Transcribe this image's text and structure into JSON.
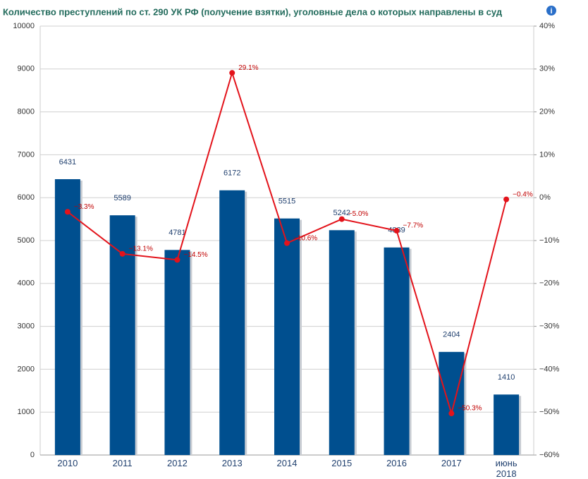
{
  "chart_data": {
    "type": "bar_line",
    "title": "Количество преступлений по ст. 290 УК РФ (получение взятки), уголовные дела о которых направлены в суд",
    "categories": [
      "2010",
      "2011",
      "2012",
      "2013",
      "2014",
      "2015",
      "2016",
      "2017",
      "июнь 2018"
    ],
    "series": [
      {
        "type": "bar",
        "color": "#004f8f",
        "values": [
          6431,
          5589,
          4781,
          6172,
          5515,
          5242,
          4839,
          2404,
          1410
        ]
      },
      {
        "type": "line",
        "axis": "y2",
        "color": "#e3131b",
        "values": [
          -3.3,
          -13.1,
          -14.5,
          29.1,
          -10.6,
          -5.0,
          -7.7,
          -50.3,
          -0.4
        ],
        "value_labels": [
          "−3.3%",
          "−13.1%",
          "−14.5%",
          "29.1%",
          "−10.6%",
          "−5.0%",
          "−7.7%",
          "−50.3%",
          "−0.4%"
        ]
      }
    ],
    "ylim": [
      0,
      10000
    ],
    "yticks": [
      0,
      1000,
      2000,
      3000,
      4000,
      5000,
      6000,
      7000,
      8000,
      9000,
      10000
    ],
    "y2lim": [
      -60,
      40
    ],
    "y2ticks": [
      {
        "value": -60,
        "label": "−60%"
      },
      {
        "value": -50,
        "label": "−50%"
      },
      {
        "value": -40,
        "label": "−40%"
      },
      {
        "value": -30,
        "label": "−30%"
      },
      {
        "value": -20,
        "label": "−20%"
      },
      {
        "value": -10,
        "label": "−10%"
      },
      {
        "value": 0,
        "label": "0%"
      },
      {
        "value": 10,
        "label": "10%"
      },
      {
        "value": 20,
        "label": "20%"
      },
      {
        "value": 30,
        "label": "30%"
      },
      {
        "value": 40,
        "label": "40%"
      }
    ],
    "grid": true
  }
}
